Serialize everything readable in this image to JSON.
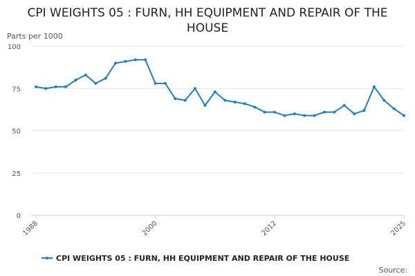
{
  "title": "CPI WEIGHTS 05 : FURN, HH EQUIPMENT AND REPAIR OF THE HOUSE",
  "source_label": "Source:",
  "colors": {
    "series": "#1a7fc1",
    "grid": "#e6e6e6",
    "axis": "#cccccc"
  },
  "chart_data": {
    "type": "line",
    "title": "CPI WEIGHTS 05 : FURN, HH EQUIPMENT AND REPAIR OF THE HOUSE",
    "ylabel": "Parts per 1000",
    "xlabel": "",
    "ylim": [
      0,
      100
    ],
    "yticks": [
      0,
      25,
      50,
      75,
      100
    ],
    "xlim": [
      1988,
      2025
    ],
    "xticks": [
      "1988",
      "2000",
      "2012",
      "2025"
    ],
    "grid": true,
    "legend": "bottom",
    "series": [
      {
        "name": "CPI WEIGHTS 05 : FURN, HH EQUIPMENT AND REPAIR OF THE HOUSE",
        "x": [
          1988,
          1989,
          1990,
          1991,
          1992,
          1993,
          1994,
          1995,
          1996,
          1997,
          1998,
          1999,
          2000,
          2001,
          2002,
          2003,
          2004,
          2005,
          2006,
          2007,
          2008,
          2009,
          2010,
          2011,
          2012,
          2013,
          2014,
          2015,
          2016,
          2017,
          2018,
          2019,
          2020,
          2021,
          2022,
          2023,
          2024,
          2025
        ],
        "values": [
          76,
          75,
          76,
          76,
          80,
          83,
          78,
          81,
          90,
          91,
          92,
          92,
          78,
          78,
          69,
          68,
          75,
          65,
          73,
          68,
          67,
          66,
          64,
          61,
          61,
          59,
          60,
          59,
          59,
          61,
          61,
          65,
          60,
          62,
          76,
          68,
          63,
          59
        ]
      }
    ]
  }
}
